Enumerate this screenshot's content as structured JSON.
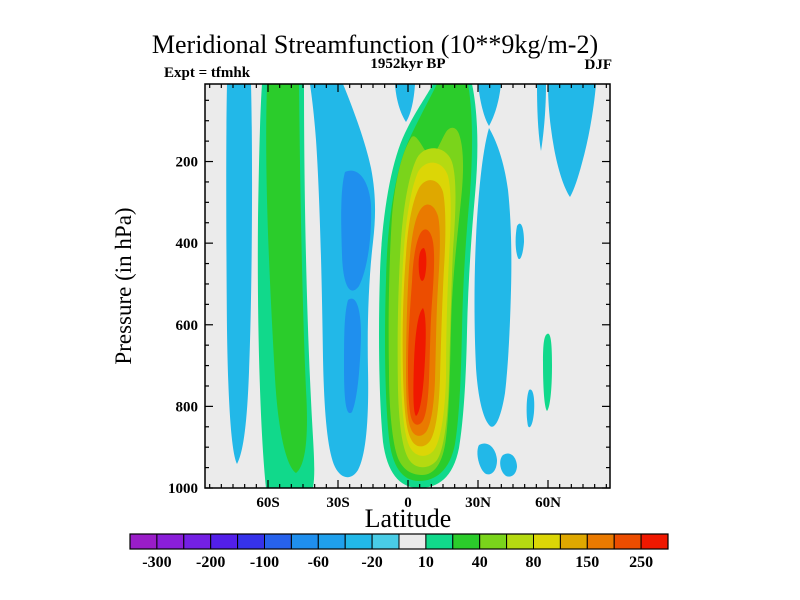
{
  "title": "Meridional Streamfunction (10**9kg/m-2)",
  "annotations": {
    "experiment": "Expt = tfmhk",
    "time": "1952kyr BP",
    "season": "DJF"
  },
  "axes": {
    "x": {
      "label": "Latitude",
      "range_deg": [
        -87,
        87
      ],
      "minor_tick_step_deg": 5,
      "major_ticks": [
        {
          "value": -60,
          "label": "60S"
        },
        {
          "value": -30,
          "label": "30S"
        },
        {
          "value": 0,
          "label": "0"
        },
        {
          "value": 30,
          "label": "30N"
        },
        {
          "value": 60,
          "label": "60N"
        }
      ]
    },
    "y": {
      "label": "Pressure (in hPa)",
      "range_hPa": [
        10,
        1000
      ],
      "minor_tick_step_hPa": 50,
      "major_ticks": [
        {
          "value": 200,
          "label": "200"
        },
        {
          "value": 400,
          "label": "400"
        },
        {
          "value": 600,
          "label": "600"
        },
        {
          "value": 800,
          "label": "800"
        },
        {
          "value": 1000,
          "label": "1000"
        }
      ]
    }
  },
  "colorbar": {
    "levels": [
      -400,
      -300,
      -250,
      -200,
      -150,
      -100,
      -80,
      -60,
      -40,
      -20,
      -10,
      10,
      20,
      40,
      60,
      80,
      100,
      150,
      200,
      250,
      300
    ],
    "labels": [
      "-300",
      "-200",
      "-100",
      "-60",
      "-20",
      "10",
      "40",
      "80",
      "150",
      "250"
    ],
    "colors": [
      "#9a1dc8",
      "#8a1ed9",
      "#7420e4",
      "#531fe9",
      "#3632ea",
      "#2762ec",
      "#1f8fee",
      "#1fa0ec",
      "#22b8e8",
      "#49cce6",
      "#ebebeb",
      "#11d98b",
      "#2bcc2b",
      "#7ad41b",
      "#b5da11",
      "#dcd606",
      "#dfa800",
      "#ea7a00",
      "#ec4d00",
      "#f01800"
    ]
  },
  "chart_data": {
    "type": "contour_fill",
    "title": "Meridional Streamfunction (10**9kg/m-2)",
    "experiment": "tfmhk",
    "time": "1952kyr BP",
    "season": "DJF",
    "xlabel": "Latitude",
    "ylabel": "Pressure (in hPa)",
    "x_range_deg": [
      -87,
      87
    ],
    "y_range_hPa": [
      10,
      1000
    ],
    "y_axis_inverted": true,
    "grid": false,
    "legend": "horizontal colorbar at bottom",
    "contour_levels": [
      -400,
      -300,
      -250,
      -200,
      -150,
      -100,
      -80,
      -60,
      -40,
      -20,
      -10,
      10,
      20,
      40,
      60,
      80,
      100,
      150,
      200,
      250,
      300
    ],
    "background_level_band": [
      -10,
      10
    ],
    "features": [
      {
        "name": "southern-polar-negative-band",
        "sign": "negative",
        "lat_deg": [
          -78,
          -68
        ],
        "pressure_hPa": [
          10,
          930
        ],
        "value_band": "-40 to -20"
      },
      {
        "name": "southern-midlatitude-positive-band",
        "sign": "positive",
        "lat_deg": [
          -63,
          -42
        ],
        "pressure_hPa": [
          10,
          1000
        ],
        "value_band": "20 to 40"
      },
      {
        "name": "southern-subtropical-negative-band",
        "sign": "negative",
        "lat_deg": [
          -42,
          -15
        ],
        "pressure_hPa": [
          10,
          990
        ],
        "value_band": "-40 to -20",
        "core": {
          "lat_deg": [
            -29,
            -16
          ],
          "pressure_hPa": [
            220,
            820
          ],
          "value_band": "-80 to -60"
        }
      },
      {
        "name": "equatorial-top-negative-notch",
        "sign": "negative",
        "lat_deg": [
          -6,
          3
        ],
        "pressure_hPa": [
          10,
          110
        ],
        "value_band": "-40 to -20"
      },
      {
        "name": "hadley-cell-positive",
        "sign": "positive",
        "lat_deg": [
          -13,
          28
        ],
        "pressure_hPa": [
          10,
          1000
        ],
        "value_band": "up to 250-300",
        "core": {
          "lat_deg": [
            2,
            12
          ],
          "pressure_hPa": [
            400,
            850
          ],
          "value_band": "250 to 300"
        }
      },
      {
        "name": "northern-subtropical-negative-region",
        "sign": "negative",
        "lat_deg": [
          28,
          50
        ],
        "pressure_hPa": [
          110,
          870
        ],
        "value_band": "-40 to -20"
      },
      {
        "name": "northern-midlatitude-positive-sliver",
        "sign": "positive",
        "lat_deg": [
          57,
          61
        ],
        "pressure_hPa": [
          620,
          810
        ],
        "value_band": "10 to 20"
      },
      {
        "name": "northern-polar-negative-patches-upper",
        "sign": "negative",
        "lat_deg": [
          55,
          80
        ],
        "pressure_hPa": [
          10,
          290
        ],
        "value_band": "-40 to -20"
      }
    ]
  }
}
